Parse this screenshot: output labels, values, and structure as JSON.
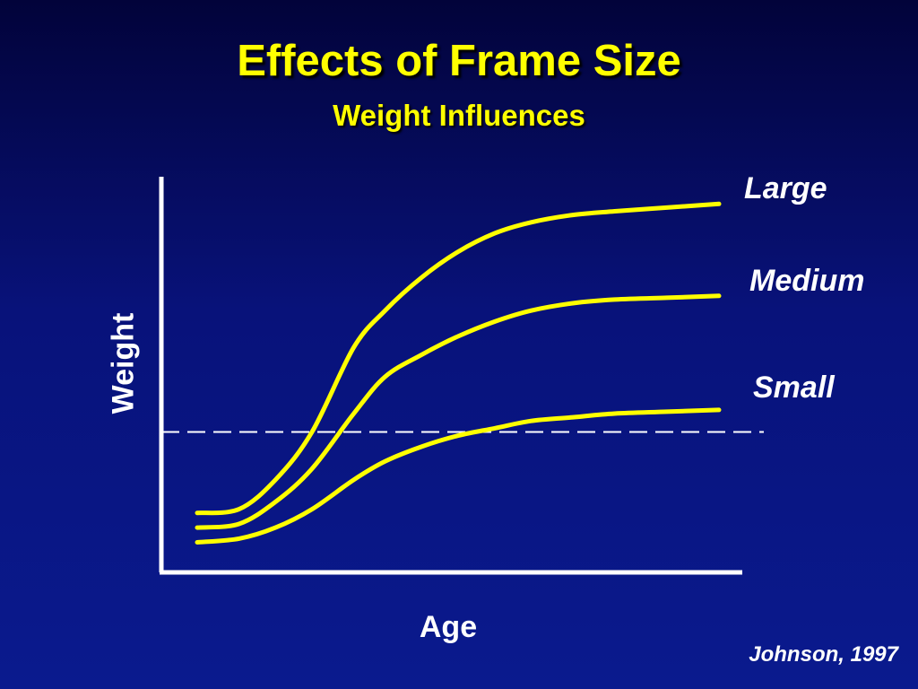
{
  "slide": {
    "title": "Effects of Frame Size",
    "subtitle": "Weight Influences",
    "citation": "Johnson, 1997"
  },
  "chart_data": {
    "type": "line",
    "title": "Effects of Frame Size",
    "subtitle": "Weight Influences",
    "xlabel": "Age",
    "ylabel": "Weight",
    "xlim": [
      0,
      100
    ],
    "ylim": [
      0,
      100
    ],
    "grid": false,
    "legend": "direct labels at right end of each line",
    "line_color": "#ffff00",
    "reference_line": {
      "y": 35,
      "style": "dashed",
      "color": "#ffffff"
    },
    "series": [
      {
        "name": "Large",
        "x": [
          0,
          8,
          15,
          22,
          30,
          36,
          43,
          50,
          57,
          64,
          72,
          80,
          90,
          100
        ],
        "y": [
          13,
          14,
          22,
          35,
          58,
          68,
          77,
          84,
          89,
          92,
          94,
          95,
          96,
          97
        ]
      },
      {
        "name": "Medium",
        "x": [
          0,
          8,
          15,
          22,
          30,
          36,
          43,
          50,
          57,
          64,
          72,
          80,
          90,
          100
        ],
        "y": [
          9,
          10,
          16,
          25,
          40,
          50,
          56,
          61,
          65,
          68,
          70,
          71,
          71.5,
          72
        ]
      },
      {
        "name": "Small",
        "x": [
          0,
          8,
          15,
          22,
          30,
          36,
          43,
          50,
          57,
          64,
          72,
          80,
          90,
          100
        ],
        "y": [
          5,
          6,
          9,
          14,
          22,
          27,
          31,
          34,
          36,
          38,
          39,
          40,
          40.5,
          41
        ]
      }
    ]
  }
}
